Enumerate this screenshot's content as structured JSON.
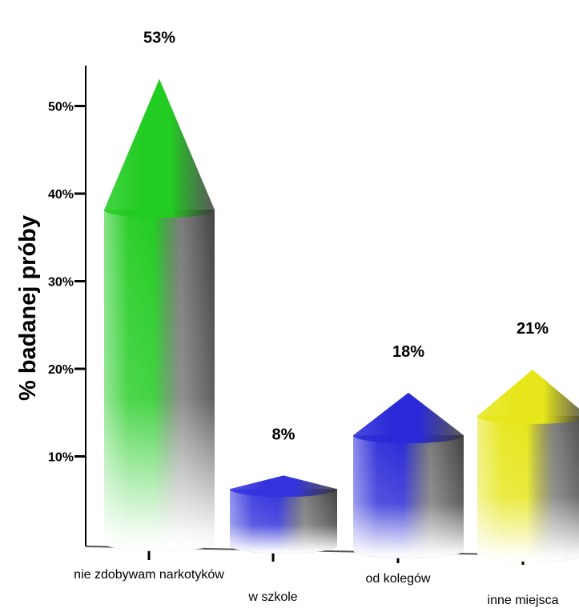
{
  "chart_data": {
    "type": "bar",
    "style": "3d-cone-cylinders",
    "ylabel": "% badanej próby",
    "xlabel": "",
    "ylim": [
      0,
      55
    ],
    "yticks": [
      "10%",
      "20%",
      "30%",
      "40%",
      "50%"
    ],
    "ytick_values": [
      10,
      20,
      30,
      40,
      50
    ],
    "categories": [
      "nie zdobywam narkotyków",
      "w szkole",
      "od kolegów",
      "inne miejsca"
    ],
    "values": [
      53,
      8,
      18,
      21
    ],
    "value_labels": [
      "53%",
      "8%",
      "18%",
      "21%"
    ],
    "colors": [
      "#22cc22",
      "#3333dd",
      "#2a2ad8",
      "#e6e61a"
    ],
    "grid": false,
    "legend": "none"
  }
}
